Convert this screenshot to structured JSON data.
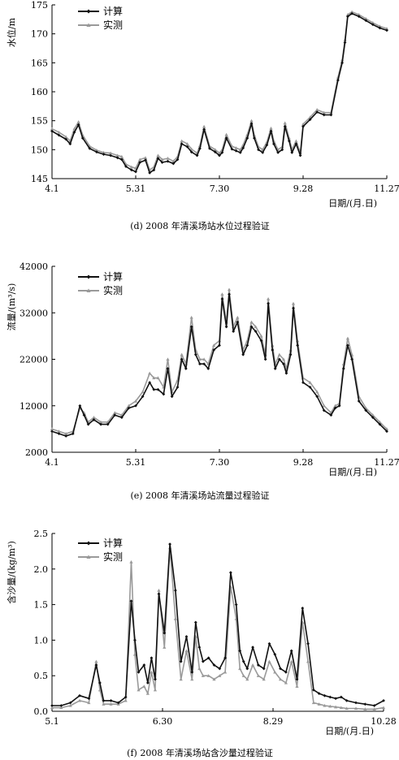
{
  "colors": {
    "calc": "#111111",
    "meas": "#9a9a9a",
    "axis": "#000000"
  },
  "chart_data": [
    {
      "type": "line",
      "caption": "(d) 2008 年清溪场站水位过程验证",
      "ylabel": "水位/m",
      "xlabel": "日期/(月.日)",
      "ylim": [
        145,
        175
      ],
      "yticks": [
        145,
        150,
        155,
        160,
        165,
        170,
        175
      ],
      "ytick_labels": [
        "145",
        "150",
        "155",
        "160",
        "165",
        "170",
        "175"
      ],
      "xlim": [
        0,
        240
      ],
      "xticks": [
        0,
        60,
        120,
        180,
        240
      ],
      "xtick_labels": [
        "4.1",
        "5.31",
        "7.30",
        "9.28",
        "11.27"
      ],
      "legend": "top-left",
      "series": [
        {
          "name": "计算",
          "color": "#111111",
          "marker": "diamond",
          "x": [
            0,
            5,
            10,
            13,
            16,
            19,
            22,
            27,
            32,
            37,
            42,
            47,
            50,
            53,
            57,
            60,
            63,
            67,
            70,
            73,
            76,
            79,
            83,
            87,
            90,
            93,
            97,
            100,
            104,
            106,
            109,
            113,
            117,
            120,
            122,
            125,
            129,
            132,
            135,
            137,
            140,
            143,
            145,
            148,
            151,
            154,
            157,
            159,
            162,
            165,
            167,
            170,
            172,
            175,
            178,
            180,
            185,
            190,
            195,
            200,
            205,
            208,
            210,
            212,
            215,
            220,
            225,
            230,
            235,
            240
          ],
          "y": [
            153.2,
            152.5,
            151.8,
            151.0,
            153.0,
            154.3,
            152.0,
            150.2,
            149.6,
            149.2,
            149.0,
            148.6,
            148.3,
            147.1,
            146.5,
            146.2,
            147.8,
            148.2,
            146.0,
            146.5,
            148.5,
            147.8,
            148.0,
            147.6,
            148.3,
            151.0,
            150.5,
            149.6,
            149.0,
            150.2,
            153.5,
            150.2,
            149.6,
            149.0,
            149.5,
            152.0,
            150.1,
            149.8,
            149.5,
            150.3,
            152.0,
            154.5,
            152.0,
            150.0,
            149.5,
            150.8,
            153.2,
            151.0,
            149.5,
            150.0,
            154.0,
            151.5,
            149.5,
            151.0,
            149.0,
            154.0,
            155.2,
            156.5,
            156.0,
            156.0,
            162.0,
            165.0,
            168.5,
            173.0,
            173.5,
            173.0,
            172.3,
            171.6,
            171.0,
            170.6
          ]
        },
        {
          "name": "实测",
          "color": "#9a9a9a",
          "marker": "triangle",
          "x": [
            0,
            5,
            10,
            13,
            16,
            19,
            22,
            27,
            32,
            37,
            42,
            47,
            50,
            53,
            57,
            60,
            63,
            67,
            70,
            73,
            76,
            79,
            83,
            87,
            90,
            93,
            97,
            100,
            104,
            106,
            109,
            113,
            117,
            120,
            122,
            125,
            129,
            132,
            135,
            137,
            140,
            143,
            145,
            148,
            151,
            154,
            157,
            159,
            162,
            165,
            167,
            170,
            172,
            175,
            178,
            180,
            185,
            190,
            195,
            200,
            205,
            208,
            210,
            212,
            215,
            220,
            225,
            230,
            235,
            240
          ],
          "y": [
            153.6,
            153.0,
            152.2,
            151.5,
            153.6,
            154.8,
            152.5,
            150.6,
            149.9,
            149.5,
            149.4,
            149.0,
            148.8,
            147.5,
            147.0,
            146.8,
            148.3,
            148.6,
            146.5,
            147.0,
            149.0,
            148.3,
            148.5,
            148.0,
            148.8,
            151.5,
            151.0,
            150.1,
            149.4,
            150.7,
            154.0,
            150.6,
            150.0,
            149.4,
            150.0,
            152.6,
            150.6,
            150.3,
            150.0,
            150.8,
            152.6,
            155.0,
            152.5,
            150.5,
            150.0,
            151.3,
            153.7,
            151.5,
            150.0,
            150.5,
            154.6,
            152.0,
            150.0,
            151.5,
            149.5,
            154.4,
            155.6,
            156.9,
            156.4,
            156.4,
            162.5,
            165.5,
            169.0,
            173.3,
            173.8,
            173.3,
            172.6,
            171.9,
            171.3,
            170.9
          ]
        }
      ]
    },
    {
      "type": "line",
      "caption": "(e) 2008 年清溪场站流量过程验证",
      "ylabel": "流量/(m³/s)",
      "xlabel": "日期/(月.日)",
      "ylim": [
        2000,
        42000
      ],
      "yticks": [
        2000,
        12000,
        22000,
        32000,
        42000
      ],
      "ytick_labels": [
        "2000",
        "12000",
        "22000",
        "32000",
        "42000"
      ],
      "xlim": [
        0,
        240
      ],
      "xticks": [
        0,
        60,
        120,
        180,
        240
      ],
      "xtick_labels": [
        "4.1",
        "5.31",
        "7.30",
        "9.28",
        "11.27"
      ],
      "legend": "top-left",
      "series": [
        {
          "name": "计算",
          "color": "#111111",
          "marker": "diamond",
          "x": [
            0,
            5,
            10,
            15,
            20,
            23,
            26,
            30,
            35,
            40,
            45,
            50,
            55,
            60,
            65,
            70,
            73,
            76,
            80,
            83,
            86,
            90,
            93,
            96,
            100,
            103,
            106,
            109,
            112,
            116,
            120,
            122,
            125,
            127,
            130,
            133,
            137,
            140,
            143,
            146,
            150,
            153,
            155,
            158,
            160,
            163,
            166,
            168,
            171,
            173,
            176,
            180,
            185,
            190,
            195,
            200,
            203,
            206,
            209,
            212,
            215,
            220,
            225,
            230,
            235,
            240
          ],
          "y": [
            6500,
            6000,
            5500,
            6000,
            12000,
            10000,
            8000,
            9000,
            8000,
            8000,
            10000,
            9500,
            11500,
            12000,
            14000,
            17000,
            15500,
            15500,
            14500,
            20000,
            14000,
            16000,
            22000,
            20000,
            29000,
            23000,
            21000,
            21000,
            20000,
            24000,
            25000,
            35000,
            29000,
            36000,
            28000,
            30000,
            23000,
            25000,
            29000,
            28000,
            26000,
            22000,
            34000,
            24000,
            20000,
            22000,
            21000,
            19000,
            23000,
            33000,
            25000,
            17000,
            16000,
            14000,
            11000,
            10000,
            11500,
            12000,
            20000,
            25000,
            22000,
            13000,
            11000,
            9500,
            8000,
            6500
          ]
        },
        {
          "name": "实测",
          "color": "#9a9a9a",
          "marker": "triangle",
          "x": [
            0,
            5,
            10,
            15,
            20,
            23,
            26,
            30,
            35,
            40,
            45,
            50,
            55,
            60,
            65,
            70,
            73,
            76,
            80,
            83,
            86,
            90,
            93,
            96,
            100,
            103,
            106,
            109,
            112,
            116,
            120,
            122,
            125,
            127,
            130,
            133,
            137,
            140,
            143,
            146,
            150,
            153,
            155,
            158,
            160,
            163,
            166,
            168,
            171,
            173,
            176,
            180,
            185,
            190,
            195,
            200,
            203,
            206,
            209,
            212,
            215,
            220,
            225,
            230,
            235,
            240
          ],
          "y": [
            7000,
            6500,
            6000,
            6500,
            11500,
            10500,
            8500,
            9500,
            8500,
            8500,
            10500,
            10000,
            12000,
            13000,
            15000,
            19000,
            18000,
            18000,
            16000,
            22000,
            15000,
            17500,
            23000,
            21000,
            31000,
            24000,
            22000,
            22000,
            21000,
            25000,
            26000,
            36000,
            30000,
            37000,
            29000,
            31000,
            24000,
            26000,
            30000,
            29000,
            27000,
            23000,
            35000,
            25000,
            21000,
            23000,
            22000,
            20000,
            24000,
            34000,
            26000,
            18000,
            17000,
            15000,
            12000,
            10500,
            12000,
            12500,
            21000,
            26500,
            23000,
            14000,
            11500,
            10000,
            8500,
            7000
          ]
        }
      ]
    },
    {
      "type": "line",
      "caption": "(f) 2008 年清溪场站含沙量过程验证",
      "ylabel": "含沙量/(kg/m³)",
      "xlabel": "日期/(月.日)",
      "ylim": [
        0,
        2.5
      ],
      "yticks": [
        0,
        0.5,
        1.0,
        1.5,
        2.0,
        2.5
      ],
      "ytick_labels": [
        "0.0",
        "0.5",
        "1.0",
        "1.5",
        "2.0",
        "2.5"
      ],
      "xlim": [
        0,
        180
      ],
      "xticks": [
        0,
        60,
        120,
        180
      ],
      "xtick_labels": [
        "5.1",
        "6.30",
        "8.29",
        "10.28"
      ],
      "legend": "top-left",
      "series": [
        {
          "name": "计算",
          "color": "#111111",
          "marker": "diamond",
          "x": [
            0,
            5,
            10,
            15,
            20,
            24,
            26,
            28,
            32,
            36,
            40,
            43,
            45,
            47,
            50,
            52,
            54,
            56,
            58,
            61,
            64,
            67,
            70,
            73,
            76,
            78,
            80,
            82,
            85,
            88,
            91,
            94,
            97,
            100,
            102,
            104,
            106,
            109,
            112,
            115,
            118,
            121,
            124,
            127,
            130,
            133,
            136,
            139,
            142,
            145,
            148,
            151,
            154,
            157,
            160,
            165,
            170,
            175,
            180
          ],
          "y": [
            0.08,
            0.08,
            0.12,
            0.22,
            0.18,
            0.65,
            0.4,
            0.15,
            0.15,
            0.12,
            0.2,
            1.55,
            1.0,
            0.55,
            0.65,
            0.4,
            0.75,
            0.45,
            1.65,
            1.1,
            2.35,
            1.7,
            0.7,
            1.05,
            0.55,
            1.25,
            0.9,
            0.7,
            0.75,
            0.65,
            0.6,
            0.75,
            1.95,
            1.5,
            0.85,
            0.7,
            0.6,
            0.9,
            0.65,
            0.6,
            0.95,
            0.8,
            0.6,
            0.55,
            0.85,
            0.45,
            1.45,
            0.95,
            0.3,
            0.25,
            0.22,
            0.2,
            0.18,
            0.2,
            0.15,
            0.12,
            0.1,
            0.08,
            0.15
          ]
        },
        {
          "name": "实测",
          "color": "#9a9a9a",
          "marker": "triangle",
          "x": [
            0,
            5,
            10,
            15,
            20,
            24,
            26,
            28,
            32,
            36,
            40,
            43,
            45,
            47,
            50,
            52,
            54,
            56,
            58,
            61,
            64,
            67,
            70,
            73,
            76,
            78,
            80,
            82,
            85,
            88,
            91,
            94,
            97,
            100,
            102,
            104,
            106,
            109,
            112,
            115,
            118,
            121,
            124,
            127,
            130,
            133,
            136,
            139,
            142,
            145,
            148,
            151,
            154,
            157,
            160,
            165,
            170,
            175,
            180
          ],
          "y": [
            0.05,
            0.05,
            0.08,
            0.15,
            0.12,
            0.7,
            0.3,
            0.1,
            0.1,
            0.1,
            0.15,
            2.1,
            0.8,
            0.3,
            0.35,
            0.25,
            0.55,
            0.3,
            1.7,
            0.9,
            2.3,
            1.3,
            0.45,
            0.85,
            0.45,
            1.05,
            0.6,
            0.5,
            0.5,
            0.45,
            0.5,
            0.55,
            1.75,
            1.3,
            0.6,
            0.5,
            0.45,
            0.65,
            0.5,
            0.45,
            0.7,
            0.55,
            0.45,
            0.4,
            0.7,
            0.35,
            1.25,
            0.7,
            0.12,
            0.1,
            0.08,
            0.07,
            0.06,
            0.05,
            0.04,
            0.04,
            0.03,
            0.03,
            0.05
          ]
        }
      ]
    }
  ]
}
